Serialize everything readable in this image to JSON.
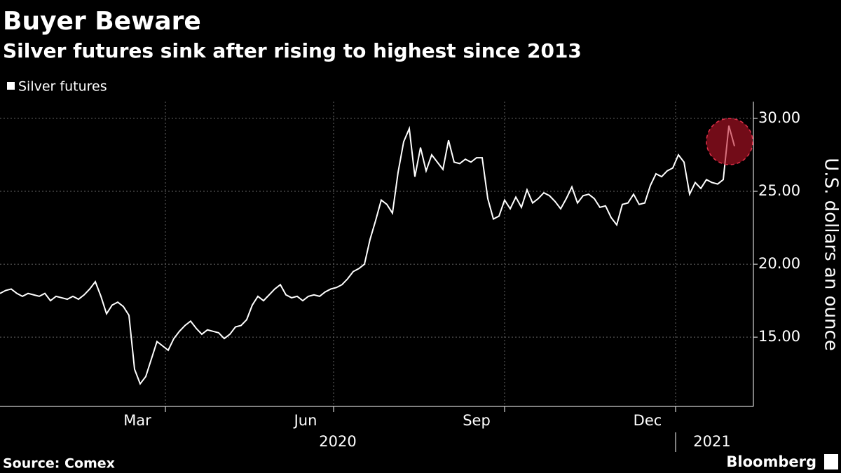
{
  "chart_data": {
    "type": "line",
    "title": "Buyer Beware",
    "subtitle": "Silver futures sink after rising to highest since 2013",
    "y_label": "U.S. dollars an ounce",
    "source": "Source: Comex",
    "brand": "Bloomberg",
    "series": [
      {
        "name": "Silver futures",
        "color": "#ffffff",
        "values": [
          18.0,
          18.2,
          18.3,
          18.0,
          17.8,
          18.0,
          17.9,
          17.8,
          18.0,
          17.5,
          17.8,
          17.7,
          17.6,
          17.8,
          17.6,
          17.9,
          18.3,
          18.8,
          17.8,
          16.6,
          17.2,
          17.4,
          17.1,
          16.5,
          12.8,
          11.8,
          12.3,
          13.5,
          14.7,
          14.4,
          14.1,
          14.9,
          15.4,
          15.8,
          16.1,
          15.6,
          15.2,
          15.5,
          15.4,
          15.3,
          14.9,
          15.2,
          15.7,
          15.8,
          16.2,
          17.2,
          17.8,
          17.5,
          17.9,
          18.3,
          18.6,
          17.9,
          17.7,
          17.8,
          17.5,
          17.8,
          17.9,
          17.8,
          18.1,
          18.3,
          18.4,
          18.6,
          19.0,
          19.5,
          19.7,
          20.0,
          21.7,
          23.0,
          24.4,
          24.1,
          23.5,
          26.3,
          28.4,
          29.3,
          26.0,
          28.0,
          26.4,
          27.5,
          27.0,
          26.5,
          28.5,
          27.0,
          26.9,
          27.2,
          27.0,
          27.3,
          27.3,
          24.5,
          23.1,
          23.3,
          24.4,
          23.8,
          24.6,
          23.9,
          25.1,
          24.2,
          24.5,
          24.9,
          24.7,
          24.3,
          23.8,
          24.5,
          25.3,
          24.2,
          24.7,
          24.8,
          24.5,
          23.9,
          24.0,
          23.2,
          22.7,
          24.1,
          24.2,
          24.8,
          24.1,
          24.2,
          25.4,
          26.2,
          26.0,
          26.4,
          26.6,
          27.5,
          27.0,
          24.8,
          25.6,
          25.2,
          25.8,
          25.6,
          25.5,
          25.8,
          29.5,
          28.1
        ]
      }
    ],
    "xlim": [
      0,
      131
    ],
    "xticks": [
      {
        "value": 24.5,
        "label": "Mar"
      },
      {
        "value": 54.5,
        "label": "Jun"
      },
      {
        "value": 85,
        "label": "Sep"
      },
      {
        "value": 115.5,
        "label": "Dec"
      }
    ],
    "year_ticks": [
      {
        "value": 60.25,
        "label": "2020"
      },
      {
        "value": 127,
        "label": "2021"
      }
    ],
    "ylim": [
      10.25,
      31.15
    ],
    "yticks": [
      {
        "value": 15,
        "label": "15.00"
      },
      {
        "value": 20,
        "label": "20.00"
      },
      {
        "value": 25,
        "label": "25.00"
      },
      {
        "value": 30,
        "label": "30.00"
      }
    ],
    "grid": true
  }
}
